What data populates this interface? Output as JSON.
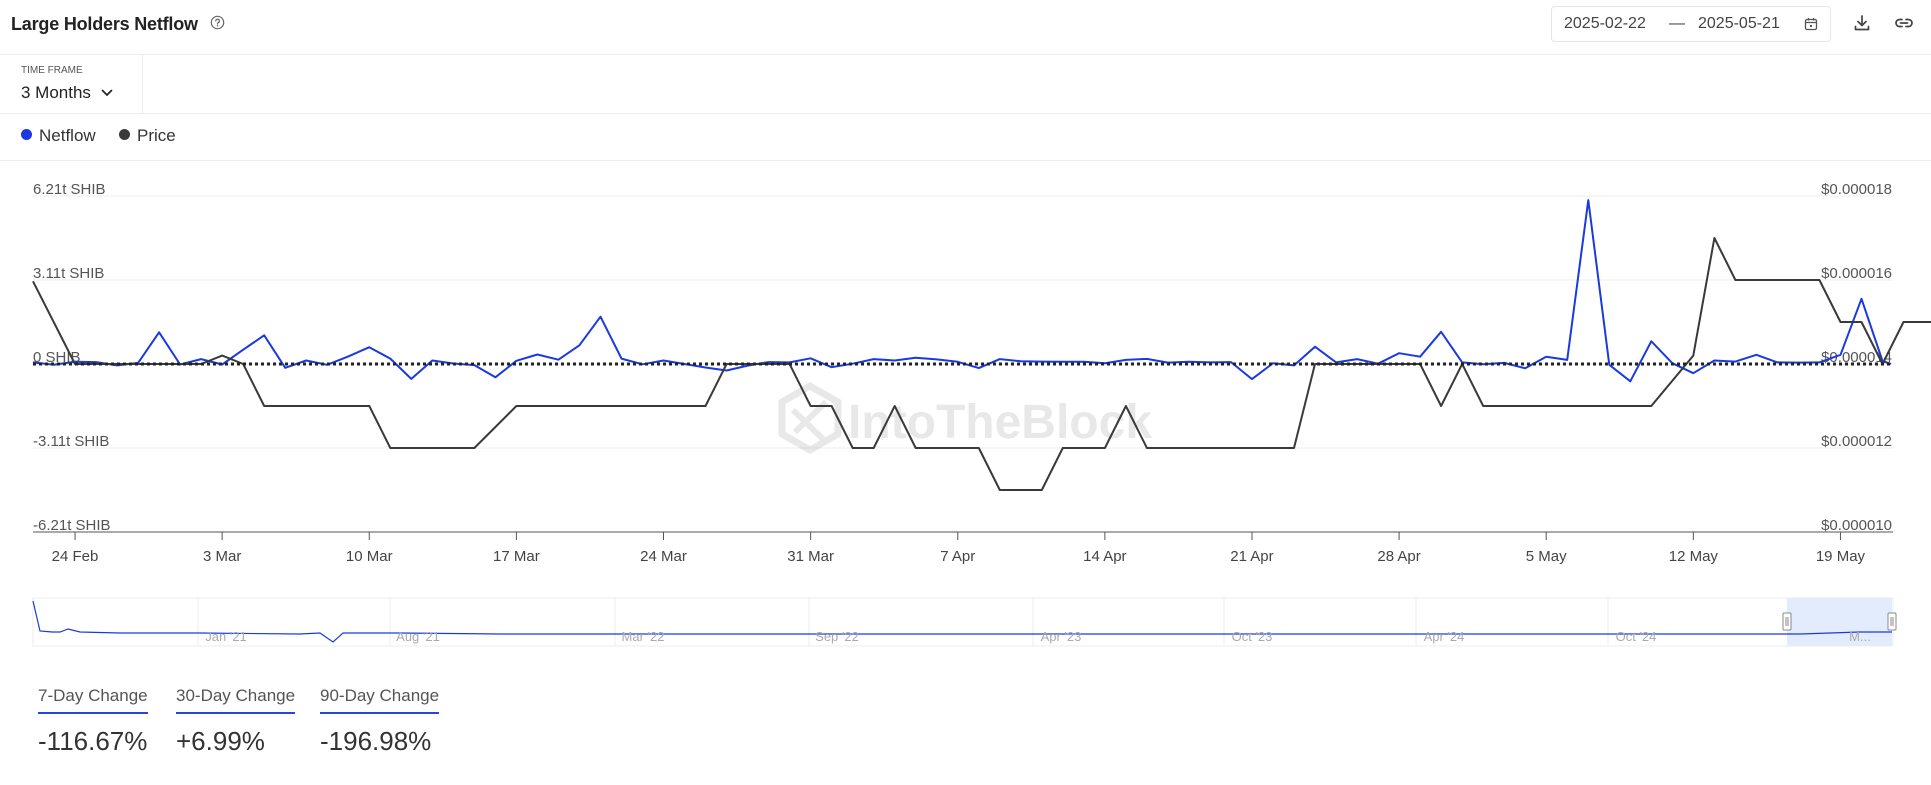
{
  "header": {
    "title": "Large Holders Netflow",
    "date_start": "2025-02-22",
    "date_sep": "—",
    "date_end": "2025-05-21"
  },
  "timeframe": {
    "label": "TIME FRAME",
    "value": "3 Months"
  },
  "legend": [
    {
      "label": "Netflow",
      "color": "#1a3ae0"
    },
    {
      "label": "Price",
      "color": "#3a3a3a"
    }
  ],
  "watermark": "IntoTheBlock",
  "chart_data": {
    "type": "line",
    "x_axis_labels": [
      "24 Feb",
      "3 Mar",
      "10 Mar",
      "17 Mar",
      "24 Mar",
      "31 Mar",
      "7 Apr",
      "14 Apr",
      "21 Apr",
      "28 Apr",
      "5 May",
      "12 May",
      "19 May"
    ],
    "left_axis": {
      "ticks": [
        "6.21t SHIB",
        "3.11t SHIB",
        "0 SHIB",
        "-3.11t SHIB",
        "-6.21t SHIB"
      ],
      "range": [
        -6.21,
        6.21
      ],
      "unit": "trillion SHIB"
    },
    "right_axis": {
      "ticks": [
        "$0.000018",
        "$0.000016",
        "$0.000014",
        "$0.000012",
        "$0.000010"
      ],
      "range": [
        1e-05,
        1.8e-05
      ]
    },
    "x_range_days": [
      -2,
      86.5
    ],
    "x_origin": "2025-02-24",
    "series": [
      {
        "name": "Netflow",
        "color": "#1a3ae0",
        "axis": "left",
        "points": [
          [
            -2,
            0.06
          ],
          [
            -1,
            -0.03
          ],
          [
            0,
            0.08
          ],
          [
            1,
            0.07
          ],
          [
            2,
            -0.05
          ],
          [
            3,
            0.04
          ],
          [
            4,
            1.17
          ],
          [
            5,
            -0.02
          ],
          [
            6,
            0.18
          ],
          [
            7,
            -0.02
          ],
          [
            8,
            0.53
          ],
          [
            9,
            1.06
          ],
          [
            10,
            -0.14
          ],
          [
            11,
            0.13
          ],
          [
            12,
            -0.03
          ],
          [
            13,
            0.28
          ],
          [
            14,
            0.62
          ],
          [
            15,
            0.2
          ],
          [
            16,
            -0.55
          ],
          [
            17,
            0.13
          ],
          [
            18,
            0.02
          ],
          [
            19,
            -0.04
          ],
          [
            20,
            -0.49
          ],
          [
            21,
            0.12
          ],
          [
            22,
            0.35
          ],
          [
            23,
            0.16
          ],
          [
            24,
            0.69
          ],
          [
            25,
            1.75
          ],
          [
            26,
            0.2
          ],
          [
            27,
            -0.01
          ],
          [
            28,
            0.13
          ],
          [
            29,
            0.0
          ],
          [
            30,
            -0.13
          ],
          [
            31,
            -0.24
          ],
          [
            32,
            -0.06
          ],
          [
            33,
            0.07
          ],
          [
            34,
            0.06
          ],
          [
            35,
            0.21
          ],
          [
            36,
            -0.12
          ],
          [
            37,
            0.01
          ],
          [
            38,
            0.18
          ],
          [
            39,
            0.13
          ],
          [
            40,
            0.23
          ],
          [
            41,
            0.17
          ],
          [
            42,
            0.08
          ],
          [
            43,
            -0.15
          ],
          [
            44,
            0.18
          ],
          [
            45,
            0.1
          ],
          [
            46,
            0.09
          ],
          [
            47,
            0.08
          ],
          [
            48,
            0.08
          ],
          [
            49,
            0.03
          ],
          [
            50,
            0.15
          ],
          [
            51,
            0.19
          ],
          [
            52,
            0.05
          ],
          [
            53,
            0.08
          ],
          [
            54,
            0.06
          ],
          [
            55,
            0.07
          ],
          [
            56,
            -0.56
          ],
          [
            57,
            0.03
          ],
          [
            58,
            -0.05
          ],
          [
            59,
            0.64
          ],
          [
            60,
            0.06
          ],
          [
            61,
            0.18
          ],
          [
            62,
            0.01
          ],
          [
            63,
            0.4
          ],
          [
            64,
            0.27
          ],
          [
            65,
            1.19
          ],
          [
            66,
            0.06
          ],
          [
            67,
            -0.01
          ],
          [
            68,
            0.04
          ],
          [
            69,
            -0.16
          ],
          [
            70,
            0.27
          ],
          [
            71,
            0.15
          ],
          [
            72,
            6.06
          ],
          [
            73,
            -0.03
          ],
          [
            74,
            -0.64
          ],
          [
            75,
            0.84
          ],
          [
            76,
            0.03
          ],
          [
            77,
            -0.34
          ],
          [
            78,
            0.13
          ],
          [
            79,
            0.09
          ],
          [
            80,
            0.34
          ],
          [
            81,
            0.06
          ],
          [
            82,
            0.05
          ],
          [
            83,
            0.06
          ],
          [
            84,
            0.34
          ],
          [
            85,
            2.41
          ],
          [
            86,
            0.11
          ],
          [
            86.4,
            0.0
          ]
        ]
      },
      {
        "name": "Price",
        "color": "#3a3a3a",
        "axis": "right",
        "points": [
          [
            -2,
            1.597e-05
          ],
          [
            0,
            1.4e-05
          ],
          [
            6,
            1.4e-05
          ],
          [
            7,
            1.42e-05
          ],
          [
            8,
            1.4e-05
          ],
          [
            9,
            1.3e-05
          ],
          [
            14,
            1.3e-05
          ],
          [
            15,
            1.2e-05
          ],
          [
            19,
            1.2e-05
          ],
          [
            21,
            1.3e-05
          ],
          [
            30,
            1.3e-05
          ],
          [
            31,
            1.4e-05
          ],
          [
            34,
            1.4e-05
          ],
          [
            35,
            1.3e-05
          ],
          [
            36,
            1.3e-05
          ],
          [
            37,
            1.2e-05
          ],
          [
            38,
            1.2e-05
          ],
          [
            39,
            1.3e-05
          ],
          [
            40,
            1.2e-05
          ],
          [
            43,
            1.2e-05
          ],
          [
            44,
            1.1e-05
          ],
          [
            46,
            1.1e-05
          ],
          [
            47,
            1.2e-05
          ],
          [
            49,
            1.2e-05
          ],
          [
            50,
            1.3e-05
          ],
          [
            51,
            1.2e-05
          ],
          [
            58,
            1.2e-05
          ],
          [
            59,
            1.4e-05
          ],
          [
            64,
            1.4e-05
          ],
          [
            65,
            1.3e-05
          ],
          [
            66,
            1.4e-05
          ],
          [
            67,
            1.3e-05
          ],
          [
            75,
            1.3e-05
          ],
          [
            77,
            1.42e-05
          ],
          [
            78,
            1.7e-05
          ],
          [
            79,
            1.6e-05
          ],
          [
            83,
            1.6e-05
          ],
          [
            84,
            1.5e-05
          ],
          [
            85,
            1.5e-05
          ],
          [
            86,
            1.4e-05
          ],
          [
            87,
            1.5e-05
          ],
          [
            89,
            1.5e-05
          ]
        ]
      }
    ],
    "zero_line": "dotted",
    "navigator": {
      "labels": [
        "Jan '21",
        "Aug '21",
        "Mar '22",
        "Sep '22",
        "Apr '23",
        "Oct '23",
        "Apr '24",
        "Oct '24",
        "M..."
      ],
      "selected_range": "last 3 months"
    }
  },
  "stats": [
    {
      "label": "7-Day Change",
      "value": "-116.67%"
    },
    {
      "label": "30-Day Change",
      "value": "+6.99%"
    },
    {
      "label": "90-Day Change",
      "value": "-196.98%"
    }
  ]
}
